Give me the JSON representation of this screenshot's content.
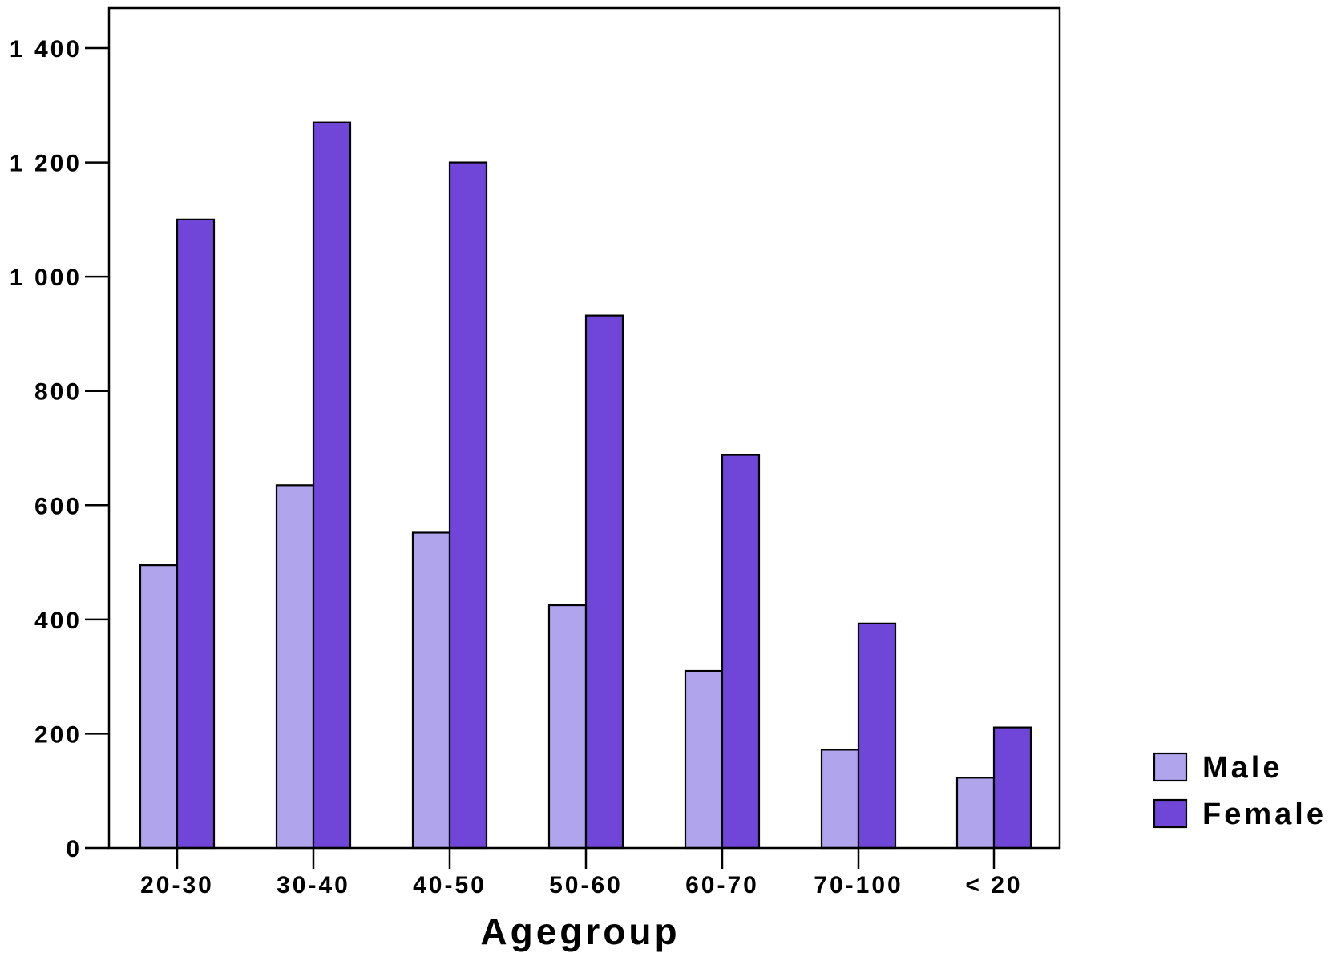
{
  "chart_data": {
    "type": "bar",
    "title": "",
    "xlabel": "Agegroup",
    "ylabel": "",
    "categories": [
      "20-30",
      "30-40",
      "40-50",
      "50-60",
      "60-70",
      "70-100",
      "< 20"
    ],
    "series": [
      {
        "name": "Male",
        "color": "#b0a5ed",
        "values": [
          495,
          635,
          552,
          425,
          310,
          172,
          123
        ]
      },
      {
        "name": "Female",
        "color": "#7046d8",
        "values": [
          1100,
          1270,
          1200,
          932,
          688,
          393,
          211
        ]
      }
    ],
    "ylim": [
      0,
      1400
    ],
    "yticks": [
      0,
      200,
      400,
      600,
      800,
      1000,
      1200,
      1400
    ],
    "ytick_labels": [
      "0",
      "200",
      "400",
      "600",
      "800",
      "1 000",
      "1 200",
      "1 400"
    ],
    "grid": false,
    "legend_position": "right"
  }
}
